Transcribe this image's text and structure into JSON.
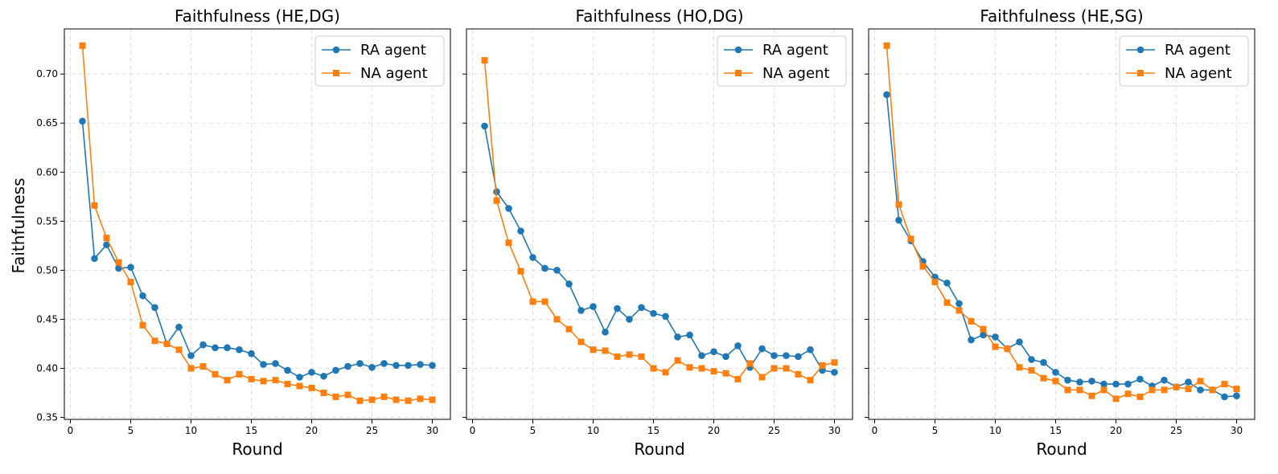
{
  "chart_data": {
    "type": "line",
    "ylabel": "Faithfulness",
    "xlabel": "Round",
    "xlim": [
      -0.5,
      31.5
    ],
    "ylim": [
      0.348,
      0.746
    ],
    "xticks": [
      0,
      5,
      10,
      15,
      20,
      25,
      30
    ],
    "yticks": [
      0.35,
      0.4,
      0.45,
      0.5,
      0.55,
      0.6,
      0.65,
      0.7
    ],
    "ytick_labels": [
      "0.35",
      "0.40",
      "0.45",
      "0.50",
      "0.55",
      "0.60",
      "0.65",
      "0.70"
    ],
    "grid": true,
    "legend_position": "upper-right",
    "series_styles": [
      {
        "name": "RA agent",
        "color": "#1f77b4",
        "marker": "circle"
      },
      {
        "name": "NA agent",
        "color": "#ff7f0e",
        "marker": "square"
      }
    ],
    "panels": [
      {
        "title": "Faithfulness (HE,DG)",
        "x": [
          1,
          2,
          3,
          4,
          5,
          6,
          7,
          8,
          9,
          10,
          11,
          12,
          13,
          14,
          15,
          16,
          17,
          18,
          19,
          20,
          21,
          22,
          23,
          24,
          25,
          26,
          27,
          28,
          29,
          30
        ],
        "series": [
          {
            "name": "RA agent",
            "values": [
              0.652,
              0.512,
              0.526,
              0.502,
              0.503,
              0.474,
              0.462,
              0.425,
              0.442,
              0.413,
              0.424,
              0.421,
              0.421,
              0.419,
              0.415,
              0.404,
              0.405,
              0.398,
              0.391,
              0.396,
              0.392,
              0.398,
              0.402,
              0.405,
              0.401,
              0.405,
              0.403,
              0.403,
              0.404,
              0.403
            ]
          },
          {
            "name": "NA agent",
            "values": [
              0.729,
              0.566,
              0.533,
              0.508,
              0.488,
              0.444,
              0.428,
              0.425,
              0.419,
              0.4,
              0.402,
              0.394,
              0.388,
              0.394,
              0.389,
              0.387,
              0.388,
              0.384,
              0.382,
              0.38,
              0.375,
              0.371,
              0.373,
              0.367,
              0.368,
              0.371,
              0.368,
              0.367,
              0.369,
              0.368
            ]
          }
        ]
      },
      {
        "title": "Faithfulness (HO,DG)",
        "x": [
          1,
          2,
          3,
          4,
          5,
          6,
          7,
          8,
          9,
          10,
          11,
          12,
          13,
          14,
          15,
          16,
          17,
          18,
          19,
          20,
          21,
          22,
          23,
          24,
          25,
          26,
          27,
          28,
          29,
          30
        ],
        "series": [
          {
            "name": "RA agent",
            "values": [
              0.647,
              0.58,
              0.563,
              0.54,
              0.513,
              0.502,
              0.5,
              0.486,
              0.459,
              0.463,
              0.437,
              0.461,
              0.45,
              0.462,
              0.456,
              0.453,
              0.432,
              0.434,
              0.413,
              0.417,
              0.412,
              0.423,
              0.401,
              0.42,
              0.413,
              0.413,
              0.412,
              0.419,
              0.398,
              0.396
            ]
          },
          {
            "name": "NA agent",
            "values": [
              0.714,
              0.571,
              0.528,
              0.499,
              0.468,
              0.468,
              0.45,
              0.44,
              0.427,
              0.419,
              0.418,
              0.412,
              0.414,
              0.412,
              0.4,
              0.396,
              0.408,
              0.401,
              0.4,
              0.397,
              0.395,
              0.389,
              0.405,
              0.391,
              0.4,
              0.4,
              0.394,
              0.388,
              0.403,
              0.406
            ]
          }
        ]
      },
      {
        "title": "Faithfulness (HE,SG)",
        "x": [
          1,
          2,
          3,
          4,
          5,
          6,
          7,
          8,
          9,
          10,
          11,
          12,
          13,
          14,
          15,
          16,
          17,
          18,
          19,
          20,
          21,
          22,
          23,
          24,
          25,
          26,
          27,
          28,
          29,
          30
        ],
        "series": [
          {
            "name": "RA agent",
            "values": [
              0.679,
              0.551,
              0.53,
              0.509,
              0.493,
              0.487,
              0.466,
              0.429,
              0.434,
              0.432,
              0.42,
              0.427,
              0.409,
              0.406,
              0.396,
              0.388,
              0.386,
              0.387,
              0.384,
              0.384,
              0.384,
              0.389,
              0.382,
              0.388,
              0.381,
              0.386,
              0.378,
              0.378,
              0.371,
              0.372
            ]
          },
          {
            "name": "NA agent",
            "values": [
              0.729,
              0.567,
              0.532,
              0.504,
              0.488,
              0.467,
              0.459,
              0.448,
              0.44,
              0.422,
              0.42,
              0.401,
              0.398,
              0.39,
              0.387,
              0.378,
              0.378,
              0.372,
              0.378,
              0.369,
              0.374,
              0.371,
              0.378,
              0.378,
              0.381,
              0.379,
              0.387,
              0.378,
              0.384,
              0.379
            ]
          }
        ]
      }
    ]
  }
}
